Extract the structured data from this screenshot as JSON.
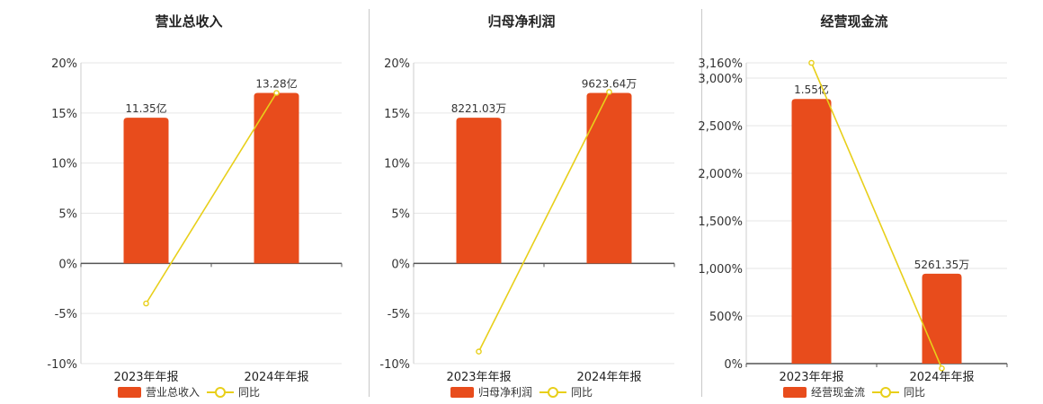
{
  "colors": {
    "bar": "#e84c1c",
    "line": "#e8cf1a"
  },
  "chart_data": [
    {
      "type": "bar",
      "title": "营业总收入",
      "categories": [
        "2023年年报",
        "2024年年报"
      ],
      "bar_series_name": "营业总收入",
      "bar_labels": [
        "11.35亿",
        "13.28亿"
      ],
      "bar_values": [
        11.35,
        13.28
      ],
      "bar_unit": "亿",
      "line_series_name": "同比",
      "line_values": [
        -4.0,
        17.0
      ],
      "ylim": [
        -10,
        20
      ],
      "yticks": [
        20,
        15,
        10,
        5,
        0,
        -5,
        -10
      ],
      "ytick_labels": [
        "20%",
        "15%",
        "10%",
        "5%",
        "0%",
        "-5%",
        "-10%"
      ],
      "legend": "bottom"
    },
    {
      "type": "bar",
      "title": "归母净利润",
      "categories": [
        "2023年年报",
        "2024年年报"
      ],
      "bar_series_name": "归母净利润",
      "bar_labels": [
        "8221.03万",
        "9623.64万"
      ],
      "bar_values": [
        8221.03,
        9623.64
      ],
      "bar_unit": "万",
      "line_series_name": "同比",
      "line_values": [
        -8.8,
        17.1
      ],
      "ylim": [
        -10,
        20
      ],
      "yticks": [
        20,
        15,
        10,
        5,
        0,
        -5,
        -10
      ],
      "ytick_labels": [
        "20%",
        "15%",
        "10%",
        "5%",
        "0%",
        "-5%",
        "-10%"
      ],
      "legend": "bottom"
    },
    {
      "type": "bar",
      "title": "经营现金流",
      "categories": [
        "2023年年报",
        "2024年年报"
      ],
      "bar_series_name": "经营现金流",
      "bar_labels": [
        "1.55亿",
        "5261.35万"
      ],
      "bar_values": [
        15500,
        5261.35
      ],
      "bar_unit": "万",
      "line_series_name": "同比",
      "line_values": [
        3160,
        -50
      ],
      "ylim": [
        0,
        3160
      ],
      "yticks": [
        3160,
        3000,
        2500,
        2000,
        1500,
        1000,
        500,
        0
      ],
      "ytick_labels": [
        "3,160%",
        "3,000%",
        "2,500%",
        "2,000%",
        "1,500%",
        "1,000%",
        "500%",
        "0%"
      ],
      "legend": "bottom"
    }
  ]
}
